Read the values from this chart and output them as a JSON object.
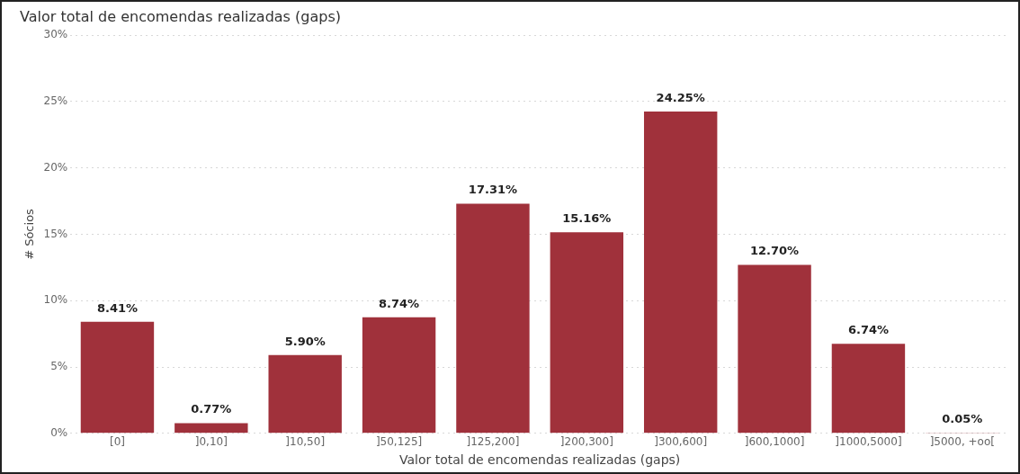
{
  "chart_data": {
    "type": "bar",
    "title": "Valor total de encomendas realizadas (gaps)",
    "xlabel": "Valor total de encomendas realizadas (gaps)",
    "ylabel": "# Sócios",
    "categories": [
      "[0]",
      "]0,10]",
      "]10,50]",
      "]50,125]",
      "]125,200]",
      "]200,300]",
      "]300,600]",
      "]600,1000]",
      "]1000,5000]",
      "]5000, +oo["
    ],
    "values": [
      8.41,
      0.77,
      5.9,
      8.74,
      17.31,
      15.16,
      24.25,
      12.7,
      6.74,
      0.05
    ],
    "value_labels": [
      "8.41%",
      "0.77%",
      "5.90%",
      "8.74%",
      "17.31%",
      "15.16%",
      "24.25%",
      "12.70%",
      "6.74%",
      "0.05%"
    ],
    "color": "#a0313b",
    "ylim": [
      0,
      30
    ],
    "yticks": [
      {
        "value": 0,
        "label": "0%"
      },
      {
        "value": 5,
        "label": "5%"
      },
      {
        "value": 10,
        "label": "10%"
      },
      {
        "value": 15,
        "label": "15%"
      },
      {
        "value": 20,
        "label": "20%"
      },
      {
        "value": 25,
        "label": "25%"
      },
      {
        "value": 30,
        "label": "30%"
      }
    ],
    "grid": "y",
    "legend": false
  }
}
